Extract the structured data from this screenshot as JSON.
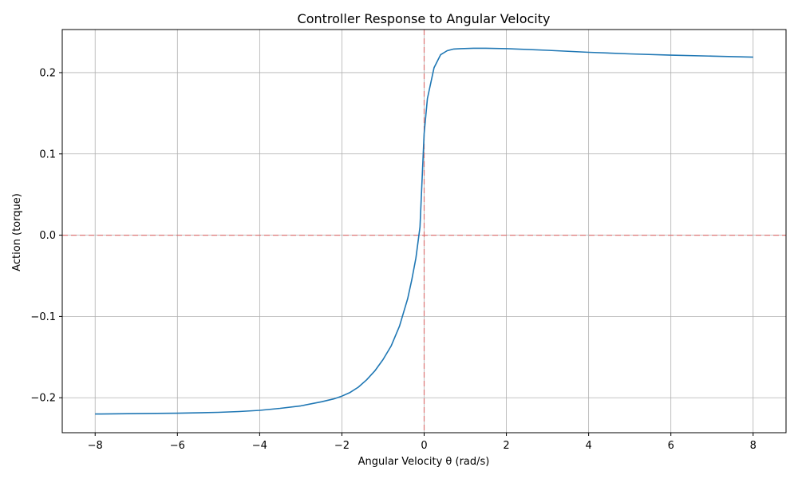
{
  "chart_data": {
    "type": "line",
    "title": "Controller Response to Angular Velocity",
    "xlabel": "Angular Velocity θ (rad/s)",
    "ylabel": "Action (torque)",
    "xlim": [
      -8.8,
      8.8
    ],
    "ylim": [
      -0.243,
      0.253
    ],
    "xticks": [
      -8,
      -6,
      -4,
      -2,
      0,
      2,
      4,
      6,
      8
    ],
    "xtick_labels": [
      "−8",
      "−6",
      "−4",
      "−2",
      "0",
      "2",
      "4",
      "6",
      "8"
    ],
    "yticks": [
      -0.2,
      -0.1,
      0.0,
      0.1,
      0.2
    ],
    "ytick_labels": [
      "−0.2",
      "−0.1",
      "0.0",
      "0.1",
      "0.2"
    ],
    "grid": true,
    "reference_lines": [
      {
        "orientation": "horizontal",
        "value": 0.0,
        "color": "#e06666",
        "style": "dashed"
      },
      {
        "orientation": "vertical",
        "value": 0.0,
        "color": "#e06666",
        "style": "dashed"
      }
    ],
    "series": [
      {
        "color": "#1f77b4",
        "x": [
          -8.0,
          -7.0,
          -6.0,
          -5.0,
          -4.5,
          -4.0,
          -3.5,
          -3.0,
          -2.5,
          -2.2,
          -2.0,
          -1.8,
          -1.6,
          -1.4,
          -1.2,
          -1.0,
          -0.8,
          -0.6,
          -0.4,
          -0.3,
          -0.2,
          -0.1,
          0.0,
          0.08,
          0.24,
          0.4,
          0.56,
          0.72,
          0.9,
          1.2,
          1.5,
          2.0,
          3.0,
          4.0,
          5.0,
          6.0,
          7.0,
          8.0
        ],
        "y": [
          -0.22,
          -0.2195,
          -0.219,
          -0.218,
          -0.217,
          -0.2155,
          -0.213,
          -0.21,
          -0.205,
          -0.2015,
          -0.198,
          -0.1935,
          -0.187,
          -0.178,
          -0.167,
          -0.153,
          -0.136,
          -0.112,
          -0.078,
          -0.055,
          -0.028,
          0.01,
          0.125,
          0.168,
          0.206,
          0.222,
          0.227,
          0.229,
          0.2295,
          0.23,
          0.23,
          0.2295,
          0.2275,
          0.225,
          0.223,
          0.2215,
          0.2203,
          0.219
        ]
      }
    ]
  }
}
